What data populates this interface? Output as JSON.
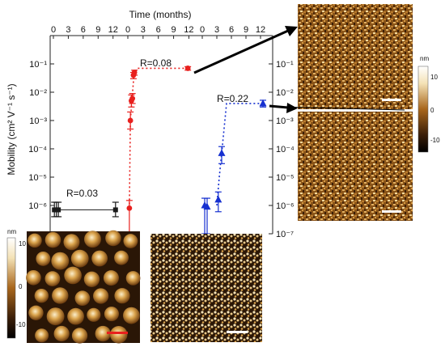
{
  "colors": {
    "black_series": "#1a1a1a",
    "red_series": "#e8201e",
    "blue_series": "#1630d0",
    "afm_dark": "#2a1606",
    "afm_mid": "#8a5418",
    "afm_light": "#f4e2b6"
  },
  "chart_data": [
    {
      "type": "scatter",
      "ylabel": "Mobility (cm² V⁻¹ s⁻¹)",
      "xlabel_top": "Time (months)",
      "y_scale": "log",
      "ylim": [
        1e-07,
        1
      ],
      "y_ticks_left": [
        "10⁻¹",
        "10⁻²",
        "10⁻³",
        "10⁻⁴",
        "10⁻⁵",
        "10⁻⁶"
      ],
      "y_ticks_right": [
        "10⁻¹",
        "10⁻²",
        "10⁻³",
        "10⁻⁴",
        "10⁻⁵",
        "10⁻⁶",
        "10⁻⁷"
      ],
      "panels": [
        {
          "x_ticks": [
            "0",
            "3",
            "6",
            "9",
            "12"
          ],
          "xlim": [
            0,
            14
          ],
          "color_key": "black_series",
          "marker": "square",
          "annotation": "R=0.03",
          "points": [
            {
              "x": 0.2,
              "y": 7e-07,
              "y_low": 4e-07,
              "y_high": 1.3e-06
            },
            {
              "x": 0.6,
              "y": 7e-07,
              "y_low": 4e-07,
              "y_high": 1.3e-06
            },
            {
              "x": 1.0,
              "y": 7e-07,
              "y_low": 4e-07,
              "y_high": 1.3e-06
            },
            {
              "x": 12.5,
              "y": 7e-07,
              "y_low": 4e-07,
              "y_high": 1.3e-06
            }
          ],
          "fit": [
            [
              0,
              7e-07
            ],
            [
              12.5,
              7e-07
            ]
          ]
        },
        {
          "x_ticks": [
            "0",
            "3",
            "6",
            "9",
            "12"
          ],
          "xlim": [
            0,
            14
          ],
          "color_key": "red_series",
          "marker": "circle",
          "annotation": "R=0.08",
          "points": [
            {
              "x": 0.3,
              "y": 8e-07,
              "y_low": 1e-07,
              "y_high": 1.5e-06
            },
            {
              "x": 0.5,
              "y": 0.001,
              "y_low": 0.0005,
              "y_high": 0.002
            },
            {
              "x": 0.7,
              "y": 0.005,
              "y_low": 0.003,
              "y_high": 0.008
            },
            {
              "x": 0.9,
              "y": 0.006,
              "y_low": 0.004,
              "y_high": 0.009
            },
            {
              "x": 1.1,
              "y": 0.04,
              "y_low": 0.03,
              "y_high": 0.05
            },
            {
              "x": 1.3,
              "y": 0.05,
              "y_low": 0.04,
              "y_high": 0.06
            },
            {
              "x": 11.8,
              "y": 0.07,
              "y_low": 0.06,
              "y_high": 0.08
            }
          ],
          "fit": [
            [
              0.3,
              8e-07
            ],
            [
              0.5,
              0.001
            ],
            [
              0.8,
              0.005
            ],
            [
              1.2,
              0.04
            ],
            [
              1.8,
              0.07
            ],
            [
              11.8,
              0.07
            ]
          ]
        },
        {
          "x_ticks": [
            "0",
            "3",
            "6",
            "9",
            "12"
          ],
          "xlim": [
            0,
            14
          ],
          "color_key": "blue_series",
          "marker": "triangle",
          "annotation": "R=0.22",
          "points": [
            {
              "x": 0.5,
              "y": 1e-06,
              "y_low": 1e-07,
              "y_high": 1.8e-06
            },
            {
              "x": 1.0,
              "y": 9e-07,
              "y_low": 1e-07,
              "y_high": 1.8e-06
            },
            {
              "x": 3.3,
              "y": 1.6e-06,
              "y_low": 6e-07,
              "y_high": 3e-06
            },
            {
              "x": 4.0,
              "y": 7e-05,
              "y_low": 3e-05,
              "y_high": 0.00012
            },
            {
              "x": 12.5,
              "y": 0.004,
              "y_low": 0.003,
              "y_high": 0.0052
            }
          ],
          "fit": [
            [
              3.0,
              1e-06
            ],
            [
              3.5,
              1e-05
            ],
            [
              4.0,
              7e-05
            ],
            [
              5.0,
              0.004
            ],
            [
              12.5,
              0.004
            ]
          ]
        }
      ]
    }
  ],
  "insets": [
    {
      "name": "afm-top-right",
      "colorbar_unit": "nm",
      "colorbar_ticks": [
        "10",
        "0",
        "-10"
      ]
    },
    {
      "name": "afm-bottom-left",
      "colorbar_unit": "nm",
      "colorbar_ticks": [
        "10",
        "0",
        "-10"
      ]
    },
    {
      "name": "afm-bottom-middle"
    }
  ]
}
